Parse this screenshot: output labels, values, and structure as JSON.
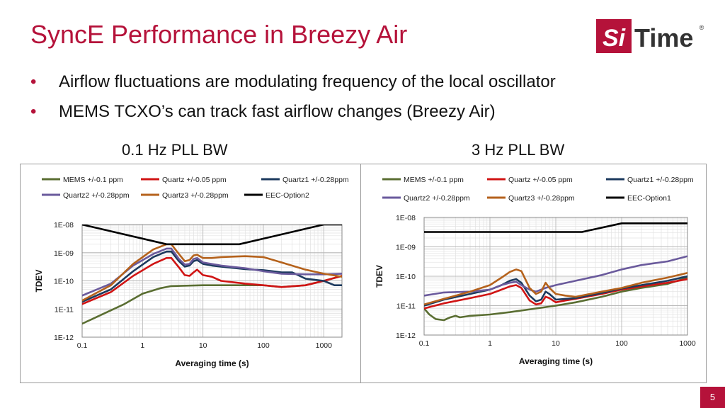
{
  "slide": {
    "title": "SyncE Performance in Breezy Air",
    "logo": {
      "text_si": "Si",
      "text_time": "Time",
      "reg": "®",
      "color": "#b5123a"
    },
    "bullets": [
      "Airflow fluctuations are modulating frequency of the local oscillator",
      "MEMS TCXO’s can track fast airflow changes (Breezy Air)"
    ],
    "bullet_symbol": "•",
    "captions": [
      "0.1 Hz PLL BW",
      "3 Hz PLL BW"
    ],
    "page_number": "5"
  },
  "chart_data": [
    {
      "type": "line",
      "caption": "0.1 Hz PLL BW",
      "xlabel": "Averaging time (s)",
      "ylabel": "TDEV",
      "x_scale": "log",
      "y_scale": "log",
      "xlim": [
        0.1,
        2000
      ],
      "ylim": [
        1e-12,
        1e-08
      ],
      "x_ticks": [
        0.1,
        1,
        10,
        100,
        1000
      ],
      "x_tick_labels": [
        "0.1",
        "1",
        "10",
        "100",
        "1000"
      ],
      "y_ticks": [
        1e-12,
        1e-11,
        1e-10,
        1e-09,
        1e-08
      ],
      "y_tick_labels": [
        "1E-12",
        "1E-11",
        "1E-10",
        "1E-09",
        "1E-08"
      ],
      "grid": true,
      "legend_position": "top",
      "series": [
        {
          "name": "MEMS +/-0.1 ppm",
          "color": "#5a6e32",
          "points": [
            [
              0.1,
              3e-12
            ],
            [
              0.2,
              6e-12
            ],
            [
              0.5,
              1.5e-11
            ],
            [
              1,
              3.5e-11
            ],
            [
              2,
              5.5e-11
            ],
            [
              3,
              6.5e-11
            ],
            [
              10,
              7e-11
            ],
            [
              30,
              7e-11
            ],
            [
              100,
              7e-11
            ],
            [
              200,
              6e-11
            ],
            [
              500,
              7e-11
            ],
            [
              1000,
              1e-10
            ],
            [
              2000,
              1.5e-10
            ]
          ]
        },
        {
          "name": "Quartz +/-0.05 ppm",
          "color": "#d01414",
          "points": [
            [
              0.1,
              1.5e-11
            ],
            [
              0.3,
              4e-11
            ],
            [
              0.7,
              1.5e-10
            ],
            [
              1.5,
              4e-10
            ],
            [
              2.5,
              6.5e-10
            ],
            [
              3,
              6.5e-10
            ],
            [
              4,
              3e-10
            ],
            [
              5,
              1.6e-10
            ],
            [
              6,
              1.5e-10
            ],
            [
              7,
              2e-10
            ],
            [
              8,
              2.5e-10
            ],
            [
              10,
              1.6e-10
            ],
            [
              14,
              1.4e-10
            ],
            [
              20,
              1e-10
            ],
            [
              50,
              8e-11
            ],
            [
              100,
              7e-11
            ],
            [
              200,
              6e-11
            ],
            [
              500,
              7e-11
            ],
            [
              1000,
              1e-10
            ],
            [
              2000,
              1.5e-10
            ]
          ]
        },
        {
          "name": "Quartz1 +/-0.28ppm",
          "color": "#1c3a5e",
          "points": [
            [
              0.1,
              1.8e-11
            ],
            [
              0.3,
              5e-11
            ],
            [
              0.7,
              2.2e-10
            ],
            [
              1.5,
              7e-10
            ],
            [
              2.5,
              1.1e-09
            ],
            [
              3,
              1.1e-09
            ],
            [
              4,
              5e-10
            ],
            [
              5,
              3.2e-10
            ],
            [
              6,
              3.5e-10
            ],
            [
              7,
              5e-10
            ],
            [
              8,
              5.5e-10
            ],
            [
              10,
              4e-10
            ],
            [
              14,
              3.5e-10
            ],
            [
              20,
              3.2e-10
            ],
            [
              50,
              2.6e-10
            ],
            [
              100,
              2.4e-10
            ],
            [
              200,
              2e-10
            ],
            [
              300,
              2e-10
            ],
            [
              500,
              1.2e-10
            ],
            [
              1000,
              1e-10
            ],
            [
              1500,
              7e-11
            ],
            [
              2000,
              7e-11
            ]
          ]
        },
        {
          "name": "Quartz2 +/-0.28ppm",
          "color": "#6a5a9c",
          "points": [
            [
              0.1,
              3e-11
            ],
            [
              0.3,
              8e-11
            ],
            [
              0.7,
              3.5e-10
            ],
            [
              1.5,
              9e-10
            ],
            [
              2.5,
              1.4e-09
            ],
            [
              3,
              1.4e-09
            ],
            [
              4,
              6e-10
            ],
            [
              5,
              3.8e-10
            ],
            [
              6,
              4e-10
            ],
            [
              7,
              6e-10
            ],
            [
              8,
              6.5e-10
            ],
            [
              10,
              4.5e-10
            ],
            [
              14,
              4e-10
            ],
            [
              20,
              3.5e-10
            ],
            [
              50,
              2.8e-10
            ],
            [
              100,
              2.2e-10
            ],
            [
              200,
              1.8e-10
            ],
            [
              500,
              1.7e-10
            ],
            [
              1000,
              1.7e-10
            ],
            [
              2000,
              1.8e-10
            ]
          ]
        },
        {
          "name": "Quartz3 +/-0.28ppm",
          "color": "#b5621c",
          "points": [
            [
              0.1,
              2e-11
            ],
            [
              0.3,
              7e-11
            ],
            [
              0.7,
              4e-10
            ],
            [
              1.5,
              1.3e-09
            ],
            [
              2.5,
              2e-09
            ],
            [
              3,
              2e-09
            ],
            [
              4,
              9e-10
            ],
            [
              5,
              5e-10
            ],
            [
              6,
              5.5e-10
            ],
            [
              7,
              8e-10
            ],
            [
              8,
              8.5e-10
            ],
            [
              10,
              6.5e-10
            ],
            [
              14,
              6.5e-10
            ],
            [
              20,
              7e-10
            ],
            [
              50,
              7.5e-10
            ],
            [
              100,
              7e-10
            ],
            [
              200,
              4.5e-10
            ],
            [
              500,
              2.5e-10
            ],
            [
              1000,
              1.8e-10
            ],
            [
              2000,
              1.4e-10
            ]
          ]
        },
        {
          "name": "EEC-Option2",
          "color": "#000000",
          "points": [
            [
              0.1,
              1e-08
            ],
            [
              2.5,
              2e-09
            ],
            [
              40,
              2e-09
            ],
            [
              1000,
              1e-08
            ],
            [
              2000,
              1e-08
            ]
          ]
        }
      ]
    },
    {
      "type": "line",
      "caption": "3 Hz PLL BW",
      "xlabel": "Averaging time (s)",
      "ylabel": "TDEV",
      "x_scale": "log",
      "y_scale": "log",
      "xlim": [
        0.1,
        1000
      ],
      "ylim": [
        1e-12,
        1e-08
      ],
      "x_ticks": [
        0.1,
        1,
        10,
        100,
        1000
      ],
      "x_tick_labels": [
        "0.1",
        "1",
        "10",
        "100",
        "1000"
      ],
      "y_ticks": [
        1e-12,
        1e-11,
        1e-10,
        1e-09,
        1e-08
      ],
      "y_tick_labels": [
        "1E-12",
        "1E-11",
        "1E-10",
        "1E-09",
        "1E-08"
      ],
      "grid": true,
      "legend_position": "top",
      "series": [
        {
          "name": "MEMS +/-0.1 ppm",
          "color": "#5a6e32",
          "points": [
            [
              0.1,
              8e-12
            ],
            [
              0.12,
              5e-12
            ],
            [
              0.15,
              3.5e-12
            ],
            [
              0.2,
              3.2e-12
            ],
            [
              0.25,
              4e-12
            ],
            [
              0.3,
              4.5e-12
            ],
            [
              0.35,
              4e-12
            ],
            [
              0.5,
              4.5e-12
            ],
            [
              1,
              5e-12
            ],
            [
              2,
              6e-12
            ],
            [
              5,
              8e-12
            ],
            [
              10,
              1e-11
            ],
            [
              20,
              1.3e-11
            ],
            [
              50,
              2e-11
            ],
            [
              100,
              3e-11
            ],
            [
              200,
              4e-11
            ],
            [
              500,
              5.5e-11
            ],
            [
              1000,
              9e-11
            ]
          ]
        },
        {
          "name": "Quartz +/-0.05 ppm",
          "color": "#d01414",
          "points": [
            [
              0.1,
              8e-12
            ],
            [
              0.2,
              1.2e-11
            ],
            [
              0.5,
              1.8e-11
            ],
            [
              1,
              2.5e-11
            ],
            [
              1.5,
              3.5e-11
            ],
            [
              2,
              4.5e-11
            ],
            [
              2.5,
              5e-11
            ],
            [
              3,
              4e-11
            ],
            [
              4,
              1.5e-11
            ],
            [
              5,
              1.1e-11
            ],
            [
              6,
              1.2e-11
            ],
            [
              7,
              2e-11
            ],
            [
              8,
              1.8e-11
            ],
            [
              10,
              1.3e-11
            ],
            [
              14,
              1.5e-11
            ],
            [
              20,
              1.7e-11
            ],
            [
              50,
              2.5e-11
            ],
            [
              100,
              3.5e-11
            ],
            [
              200,
              4.5e-11
            ],
            [
              500,
              6e-11
            ],
            [
              1000,
              8e-11
            ]
          ]
        },
        {
          "name": "Quartz1 +/-0.28ppm",
          "color": "#1c3a5e",
          "points": [
            [
              0.1,
              1e-11
            ],
            [
              0.2,
              1.6e-11
            ],
            [
              0.5,
              2.5e-11
            ],
            [
              1,
              3.5e-11
            ],
            [
              1.5,
              5e-11
            ],
            [
              2,
              7e-11
            ],
            [
              2.5,
              8e-11
            ],
            [
              3,
              6e-11
            ],
            [
              4,
              2.2e-11
            ],
            [
              5,
              1.4e-11
            ],
            [
              6,
              1.6e-11
            ],
            [
              7,
              3e-11
            ],
            [
              8,
              2.5e-11
            ],
            [
              10,
              1.6e-11
            ],
            [
              14,
              1.7e-11
            ],
            [
              20,
              1.8e-11
            ],
            [
              50,
              2.7e-11
            ],
            [
              100,
              3.8e-11
            ],
            [
              200,
              5e-11
            ],
            [
              500,
              7e-11
            ],
            [
              1000,
              1e-10
            ]
          ]
        },
        {
          "name": "Quartz2 +/-0.28ppm",
          "color": "#6a5a9c",
          "points": [
            [
              0.1,
              2.2e-11
            ],
            [
              0.2,
              2.8e-11
            ],
            [
              0.5,
              3e-11
            ],
            [
              1,
              3.5e-11
            ],
            [
              1.5,
              5e-11
            ],
            [
              2,
              6e-11
            ],
            [
              2.5,
              6.5e-11
            ],
            [
              3,
              5e-11
            ],
            [
              4,
              3.5e-11
            ],
            [
              5,
              3e-11
            ],
            [
              7,
              4e-11
            ],
            [
              10,
              5e-11
            ],
            [
              20,
              7e-11
            ],
            [
              50,
              1.1e-10
            ],
            [
              100,
              1.7e-10
            ],
            [
              200,
              2.4e-10
            ],
            [
              500,
              3.2e-10
            ],
            [
              1000,
              4.8e-10
            ]
          ]
        },
        {
          "name": "Quartz3 +/-0.28ppm",
          "color": "#b5621c",
          "points": [
            [
              0.1,
              1.1e-11
            ],
            [
              0.2,
              1.7e-11
            ],
            [
              0.5,
              3e-11
            ],
            [
              1,
              5e-11
            ],
            [
              1.5,
              9e-11
            ],
            [
              2,
              1.4e-10
            ],
            [
              2.5,
              1.7e-10
            ],
            [
              3,
              1.5e-10
            ],
            [
              4,
              4e-11
            ],
            [
              5,
              2.5e-11
            ],
            [
              6,
              3e-11
            ],
            [
              7,
              6e-11
            ],
            [
              8,
              4e-11
            ],
            [
              10,
              2.5e-11
            ],
            [
              14,
              2.2e-11
            ],
            [
              20,
              2e-11
            ],
            [
              50,
              3e-11
            ],
            [
              100,
              4e-11
            ],
            [
              200,
              6e-11
            ],
            [
              500,
              9e-11
            ],
            [
              1000,
              1.3e-10
            ]
          ]
        },
        {
          "name": "EEC-Option1",
          "color": "#000000",
          "points": [
            [
              0.1,
              3.2e-09
            ],
            [
              25,
              3.2e-09
            ],
            [
              100,
              6.3e-09
            ],
            [
              1000,
              6.3e-09
            ]
          ]
        }
      ]
    }
  ]
}
